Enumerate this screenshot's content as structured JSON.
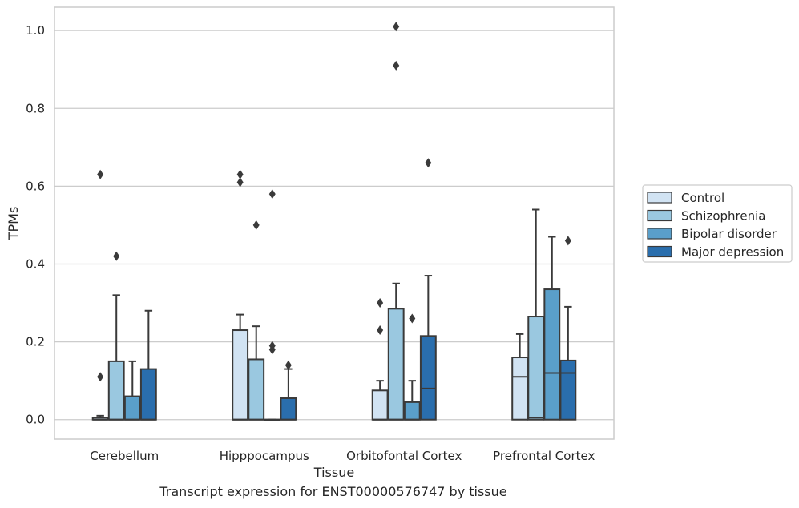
{
  "caption": "Transcript expression for ENST00000576747 by tissue",
  "chart_data": {
    "type": "boxplot",
    "xlabel": "Tissue",
    "ylabel": "TPMs",
    "ylim": [
      -0.05,
      1.06
    ],
    "yticks": [
      0.0,
      0.2,
      0.4,
      0.6,
      0.8,
      1.0
    ],
    "ytick_labels": [
      "0.0",
      "0.2",
      "0.4",
      "0.6",
      "0.8",
      "1.0"
    ],
    "grid": "horizontal",
    "legend_placement": "right",
    "categories": [
      "Cerebellum",
      "Hipppocampus",
      "Orbitofontal Cortex",
      "Prefrontal Cortex"
    ],
    "series": [
      {
        "name": "Control",
        "color": "#d1e3f3",
        "boxes": [
          {
            "q1": 0.0,
            "median": 0.0,
            "q3": 0.005,
            "whisker_low": 0.0,
            "whisker_high": 0.01,
            "outliers": [
              0.11,
              0.63
            ]
          },
          {
            "q1": 0.0,
            "median": 0.0,
            "q3": 0.23,
            "whisker_low": 0.0,
            "whisker_high": 0.27,
            "outliers": [
              0.61,
              0.63
            ]
          },
          {
            "q1": 0.0,
            "median": 0.0,
            "q3": 0.075,
            "whisker_low": 0.0,
            "whisker_high": 0.1,
            "outliers": [
              0.23,
              0.3
            ]
          },
          {
            "q1": 0.0,
            "median": 0.11,
            "q3": 0.16,
            "whisker_low": 0.0,
            "whisker_high": 0.22,
            "outliers": []
          }
        ]
      },
      {
        "name": "Schizophrenia",
        "color": "#9ac8e0",
        "boxes": [
          {
            "q1": 0.0,
            "median": 0.0,
            "q3": 0.15,
            "whisker_low": 0.0,
            "whisker_high": 0.32,
            "outliers": [
              0.42
            ]
          },
          {
            "q1": 0.0,
            "median": 0.0,
            "q3": 0.155,
            "whisker_low": 0.0,
            "whisker_high": 0.24,
            "outliers": [
              0.5
            ]
          },
          {
            "q1": 0.0,
            "median": 0.0,
            "q3": 0.285,
            "whisker_low": 0.0,
            "whisker_high": 0.35,
            "outliers": [
              0.91,
              1.01
            ]
          },
          {
            "q1": 0.0,
            "median": 0.005,
            "q3": 0.265,
            "whisker_low": 0.0,
            "whisker_high": 0.54,
            "outliers": []
          }
        ]
      },
      {
        "name": "Bipolar disorder",
        "color": "#5a9fca",
        "boxes": [
          {
            "q1": 0.0,
            "median": 0.0,
            "q3": 0.06,
            "whisker_low": 0.0,
            "whisker_high": 0.15,
            "outliers": []
          },
          {
            "q1": 0.0,
            "median": 0.0,
            "q3": 0.0,
            "whisker_low": 0.0,
            "whisker_high": 0.0,
            "outliers": [
              0.18,
              0.19,
              0.58
            ]
          },
          {
            "q1": 0.0,
            "median": 0.0,
            "q3": 0.045,
            "whisker_low": 0.0,
            "whisker_high": 0.1,
            "outliers": [
              0.26
            ]
          },
          {
            "q1": 0.0,
            "median": 0.12,
            "q3": 0.335,
            "whisker_low": 0.0,
            "whisker_high": 0.47,
            "outliers": []
          }
        ]
      },
      {
        "name": "Major depression",
        "color": "#2a6ead",
        "boxes": [
          {
            "q1": 0.0,
            "median": 0.0,
            "q3": 0.13,
            "whisker_low": 0.0,
            "whisker_high": 0.28,
            "outliers": []
          },
          {
            "q1": 0.0,
            "median": 0.0,
            "q3": 0.055,
            "whisker_low": 0.0,
            "whisker_high": 0.13,
            "outliers": [
              0.14
            ]
          },
          {
            "q1": 0.0,
            "median": 0.08,
            "q3": 0.215,
            "whisker_low": 0.0,
            "whisker_high": 0.37,
            "outliers": [
              0.66
            ]
          },
          {
            "q1": 0.0,
            "median": 0.12,
            "q3": 0.152,
            "whisker_low": 0.0,
            "whisker_high": 0.29,
            "outliers": [
              0.46
            ]
          }
        ]
      }
    ]
  }
}
